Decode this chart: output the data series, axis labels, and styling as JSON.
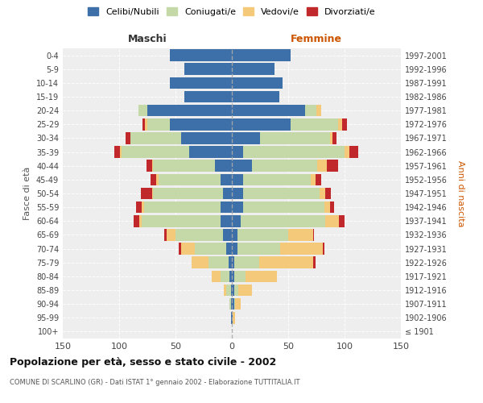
{
  "age_groups": [
    "100+",
    "95-99",
    "90-94",
    "85-89",
    "80-84",
    "75-79",
    "70-74",
    "65-69",
    "60-64",
    "55-59",
    "50-54",
    "45-49",
    "40-44",
    "35-39",
    "30-34",
    "25-29",
    "20-24",
    "15-19",
    "10-14",
    "5-9",
    "0-4"
  ],
  "birth_years": [
    "≤ 1901",
    "1902-1906",
    "1907-1911",
    "1912-1916",
    "1917-1921",
    "1922-1926",
    "1927-1931",
    "1932-1936",
    "1937-1941",
    "1942-1946",
    "1947-1951",
    "1952-1956",
    "1957-1961",
    "1962-1966",
    "1967-1971",
    "1972-1976",
    "1977-1981",
    "1982-1986",
    "1987-1991",
    "1992-1996",
    "1997-2001"
  ],
  "male_celibi": [
    0,
    1,
    1,
    1,
    2,
    3,
    5,
    8,
    10,
    10,
    8,
    10,
    15,
    38,
    45,
    55,
    75,
    42,
    55,
    42,
    55
  ],
  "male_coniugati": [
    0,
    0,
    1,
    4,
    8,
    18,
    28,
    42,
    70,
    68,
    62,
    55,
    55,
    60,
    45,
    20,
    8,
    0,
    0,
    0,
    0
  ],
  "male_vedovi": [
    0,
    0,
    0,
    2,
    8,
    15,
    12,
    8,
    2,
    2,
    1,
    2,
    1,
    1,
    0,
    2,
    0,
    0,
    0,
    0,
    0
  ],
  "male_divorziati": [
    0,
    0,
    0,
    0,
    0,
    0,
    2,
    2,
    5,
    5,
    10,
    5,
    5,
    5,
    4,
    2,
    0,
    0,
    0,
    0,
    0
  ],
  "female_nubili": [
    0,
    1,
    2,
    2,
    2,
    2,
    5,
    5,
    8,
    10,
    10,
    10,
    18,
    10,
    25,
    52,
    65,
    42,
    45,
    38,
    52
  ],
  "female_coniugate": [
    0,
    0,
    1,
    4,
    10,
    22,
    38,
    45,
    75,
    72,
    68,
    60,
    58,
    90,
    62,
    42,
    10,
    0,
    0,
    0,
    0
  ],
  "female_vedove": [
    0,
    2,
    5,
    12,
    28,
    48,
    38,
    22,
    12,
    5,
    5,
    4,
    8,
    4,
    2,
    4,
    4,
    0,
    0,
    0,
    0
  ],
  "female_divorziate": [
    0,
    0,
    0,
    0,
    0,
    2,
    1,
    1,
    5,
    4,
    5,
    5,
    10,
    8,
    4,
    4,
    0,
    0,
    0,
    0,
    0
  ],
  "colors_celibi": "#3d6fa8",
  "colors_coniugati": "#c5d9a8",
  "colors_vedovi": "#f5c97a",
  "colors_divorziati": "#c0282c",
  "xlim": 150,
  "title": "Popolazione per età, sesso e stato civile - 2002",
  "subtitle": "COMUNE DI SCARLINO (GR) - Dati ISTAT 1° gennaio 2002 - Elaborazione TUTTITALIA.IT",
  "ylabel_left": "Fasce di età",
  "ylabel_right": "Anni di nascita",
  "xlabel_left": "Maschi",
  "xlabel_right": "Femmine",
  "legend_labels": [
    "Celibi/Nubili",
    "Coniugati/e",
    "Vedovi/e",
    "Divorziati/e"
  ],
  "bg_color": "#ffffff",
  "plot_bg_color": "#eeeeee"
}
